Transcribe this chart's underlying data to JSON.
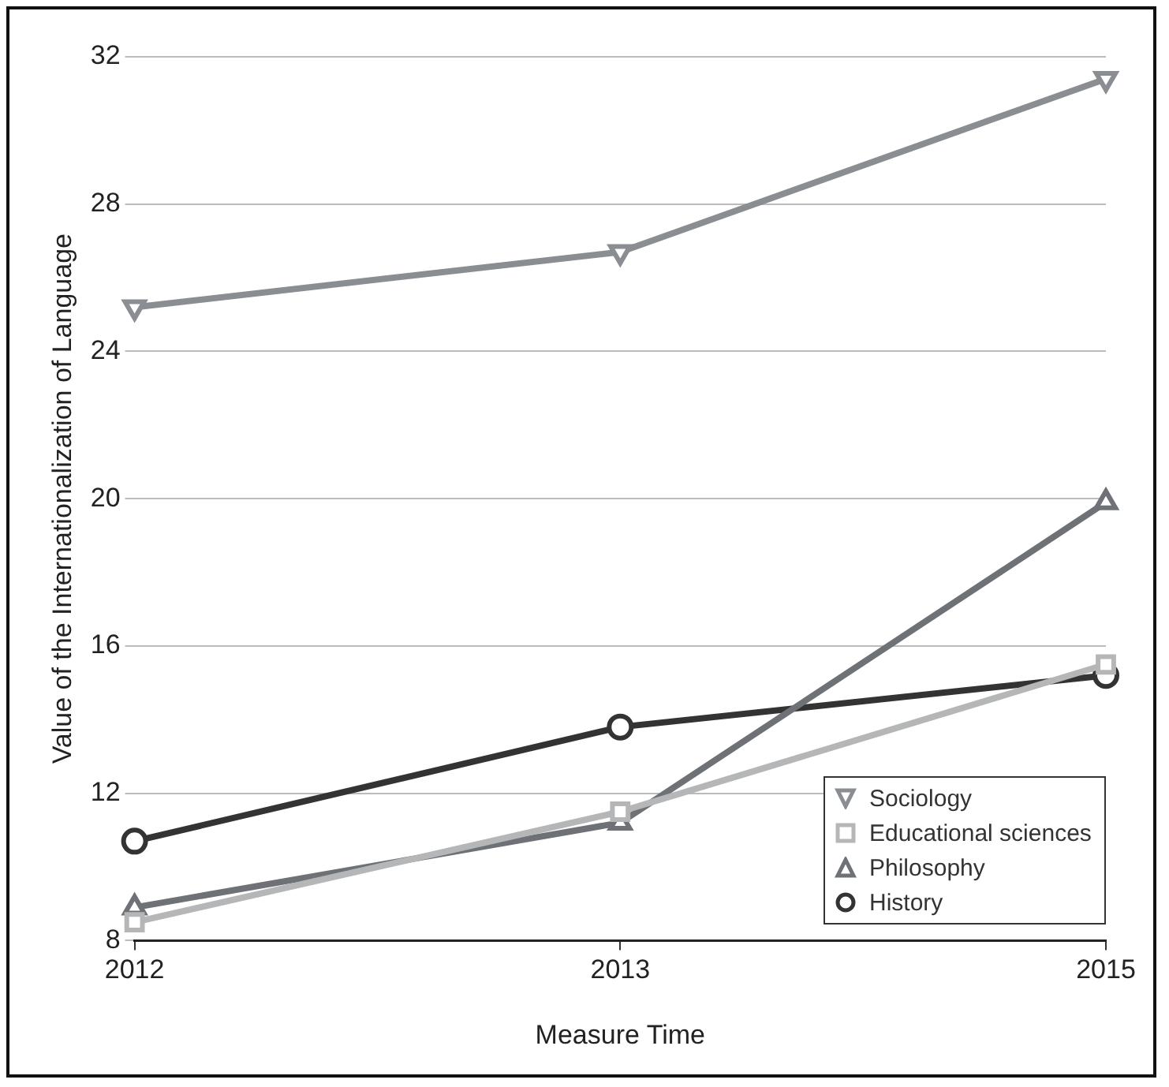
{
  "chart_data": {
    "type": "line",
    "xlabel": "Measure Time",
    "ylabel": "Value of the Internationalization of Language",
    "categories": [
      "2012",
      "2013",
      "2015"
    ],
    "series": [
      {
        "name": "Sociology",
        "color": "#8a8e93",
        "marker": "triangle-down",
        "values": [
          25.2,
          26.7,
          31.4
        ]
      },
      {
        "name": "Educational sciences",
        "color": "#b4b6b8",
        "marker": "square",
        "values": [
          8.5,
          11.5,
          15.5
        ]
      },
      {
        "name": "Philosophy",
        "color": "#6e7276",
        "marker": "triangle",
        "values": [
          8.9,
          11.2,
          19.9
        ]
      },
      {
        "name": "History",
        "color": "#333333",
        "marker": "circle",
        "values": [
          10.7,
          13.8,
          15.2
        ]
      }
    ],
    "ylim": [
      8,
      32
    ],
    "yticks": [
      8,
      12,
      16,
      20,
      24,
      28,
      32
    ],
    "grid": "y",
    "legend": "bottom right",
    "line_style": "solid"
  }
}
